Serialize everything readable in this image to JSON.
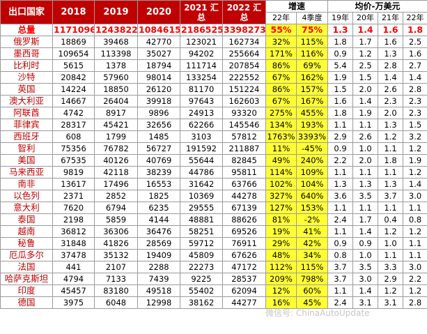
{
  "header": {
    "country": "出口国家",
    "y2018": "2018",
    "y2019": "2019",
    "y2020": "2020",
    "y2021_line1": "2021 汇",
    "y2021_line2": "总",
    "y2022_line1": "2022 汇",
    "y2022_line2": "总",
    "growth": "增速",
    "growth_22": "22年",
    "growth_q4": "4季度",
    "price": "均价-万美元",
    "price_19": "19年",
    "price_20": "20年",
    "price_21": "21年",
    "price_22": "22年"
  },
  "total": {
    "name": "总量",
    "y2018": "1171096",
    "y2019": "1243822",
    "y2020": "1084615",
    "y2021": "2186525",
    "y2022": "3398273",
    "g22": "55%",
    "gq4": "75%",
    "p19": "1.3",
    "p20": "1.4",
    "p21": "1.6",
    "p22": "1.8"
  },
  "rows": [
    {
      "name": "俄罗斯",
      "y2018": "18869",
      "y2019": "39468",
      "y2020": "42770",
      "y2021": "123021",
      "y2022": "162734",
      "g22": "32%",
      "gq4": "115%",
      "p19": "1.8",
      "p20": "1.7",
      "p21": "1.6",
      "p22": "2.5"
    },
    {
      "name": "墨西哥",
      "y2018": "109654",
      "y2019": "113398",
      "y2020": "35027",
      "y2021": "94202",
      "y2022": "255664",
      "g22": "171%",
      "gq4": "116%",
      "p19": "0.9",
      "p20": "1.2",
      "p21": "1.3",
      "p22": "1.6"
    },
    {
      "name": "比利时",
      "y2018": "5615",
      "y2019": "1378",
      "y2020": "18794",
      "y2021": "111714",
      "y2022": "207854",
      "g22": "86%",
      "gq4": "69%",
      "p19": "5.4",
      "p20": "2.5",
      "p21": "2.8",
      "p22": "2.7"
    },
    {
      "name": "沙特",
      "y2018": "20842",
      "y2019": "57960",
      "y2020": "98014",
      "y2021": "133254",
      "y2022": "222552",
      "g22": "67%",
      "gq4": "162%",
      "p19": "1.9",
      "p20": "1.5",
      "p21": "1.4",
      "p22": "1.4"
    },
    {
      "name": "英国",
      "y2018": "14224",
      "y2019": "18850",
      "y2020": "26120",
      "y2021": "81170",
      "y2022": "151224",
      "g22": "86%",
      "gq4": "157%",
      "p19": "1.5",
      "p20": "2.0",
      "p21": "2.6",
      "p22": "2.8"
    },
    {
      "name": "澳大利亚",
      "y2018": "14667",
      "y2019": "26404",
      "y2020": "39918",
      "y2021": "97643",
      "y2022": "162603",
      "g22": "67%",
      "gq4": "167%",
      "p19": "1.6",
      "p20": "1.4",
      "p21": "2.3",
      "p22": "2.3"
    },
    {
      "name": "阿联酋",
      "y2018": "4742",
      "y2019": "8917",
      "y2020": "9896",
      "y2021": "24913",
      "y2022": "93320",
      "g22": "275%",
      "gq4": "455%",
      "p19": "1.8",
      "p20": "1.9",
      "p21": "2.0",
      "p22": "2.3"
    },
    {
      "name": "菲律宾",
      "y2018": "28317",
      "y2019": "45421",
      "y2020": "32656",
      "y2021": "62266",
      "y2022": "145546",
      "g22": "134%",
      "gq4": "193%",
      "p19": "1.1",
      "p20": "1.1",
      "p21": "1.3",
      "p22": "1.5"
    },
    {
      "name": "西班牙",
      "y2018": "608",
      "y2019": "1799",
      "y2020": "1485",
      "y2021": "3103",
      "y2022": "57812",
      "g22": "1763%",
      "gq4": "3393%",
      "p19": "2.9",
      "p20": "2.6",
      "p21": "1.2",
      "p22": "3.2"
    },
    {
      "name": "智利",
      "y2018": "75356",
      "y2019": "76782",
      "y2020": "56727",
      "y2021": "191592",
      "y2022": "211887",
      "g22": "11%",
      "gq4": "-45%",
      "p19": "0.9",
      "p20": "1.0",
      "p21": "1.1",
      "p22": "1.2"
    },
    {
      "name": "美国",
      "y2018": "67535",
      "y2019": "40126",
      "y2020": "40769",
      "y2021": "55644",
      "y2022": "82845",
      "g22": "49%",
      "gq4": "240%",
      "p19": "2.2",
      "p20": "2.0",
      "p21": "1.8",
      "p22": "1.9"
    },
    {
      "name": "马来西亚",
      "y2018": "9819",
      "y2019": "42118",
      "y2020": "38239",
      "y2021": "44786",
      "y2022": "95811",
      "g22": "114%",
      "gq4": "109%",
      "p19": "1.1",
      "p20": "1.1",
      "p21": "1.1",
      "p22": "1.2"
    },
    {
      "name": "南非",
      "y2018": "13617",
      "y2019": "17496",
      "y2020": "16553",
      "y2021": "31642",
      "y2022": "63766",
      "g22": "102%",
      "gq4": "104%",
      "p19": "1.3",
      "p20": "1.3",
      "p21": "1.3",
      "p22": "1.4"
    },
    {
      "name": "以色列",
      "y2018": "2371",
      "y2019": "2852",
      "y2020": "1825",
      "y2021": "10369",
      "y2022": "44278",
      "g22": "327%",
      "gq4": "640%",
      "p19": "3.6",
      "p20": "3.5",
      "p21": "3.7",
      "p22": "3.0"
    },
    {
      "name": "意大利",
      "y2018": "7620",
      "y2019": "6794",
      "y2020": "6235",
      "y2021": "29555",
      "y2022": "67139",
      "g22": "127%",
      "gq4": "153%",
      "p19": "1.1",
      "p20": "1.1",
      "p21": "1.1",
      "p22": "1.1"
    },
    {
      "name": "泰国",
      "y2018": "2198",
      "y2019": "5859",
      "y2020": "4144",
      "y2021": "48881",
      "y2022": "88626",
      "g22": "81%",
      "gq4": "-2%",
      "p19": "2.4",
      "p20": "1.7",
      "p21": "0.4",
      "p22": "0.8"
    },
    {
      "name": "越南",
      "y2018": "36812",
      "y2019": "36306",
      "y2020": "36476",
      "y2021": "58251",
      "y2022": "69526",
      "g22": "19%",
      "gq4": "41%",
      "p19": "1.1",
      "p20": "1.4",
      "p21": "1.2",
      "p22": "1.2"
    },
    {
      "name": "秘鲁",
      "y2018": "31848",
      "y2019": "41826",
      "y2020": "28569",
      "y2021": "59712",
      "y2022": "76911",
      "g22": "29%",
      "gq4": "42%",
      "p19": "0.9",
      "p20": "0.9",
      "p21": "1.0",
      "p22": "1.1"
    },
    {
      "name": "厄瓜多尔",
      "y2018": "37478",
      "y2019": "35132",
      "y2020": "19409",
      "y2021": "45809",
      "y2022": "67626",
      "g22": "48%",
      "gq4": "34%",
      "p19": "0.8",
      "p20": "1.0",
      "p21": "1.1",
      "p22": "1.1"
    },
    {
      "name": "法国",
      "y2018": "441",
      "y2019": "2107",
      "y2020": "2288",
      "y2021": "22273",
      "y2022": "47172",
      "g22": "112%",
      "gq4": "115%",
      "p19": "3.7",
      "p20": "3.5",
      "p21": "3.3",
      "p22": "3.0"
    },
    {
      "name": "哈萨克斯坦",
      "y2018": "4794",
      "y2019": "7133",
      "y2020": "7439",
      "y2021": "9225",
      "y2022": "28537",
      "g22": "209%",
      "gq4": "798%",
      "p19": "3.7",
      "p20": "3.0",
      "p21": "2.9",
      "p22": "2.2"
    },
    {
      "name": "印度",
      "y2018": "45457",
      "y2019": "83180",
      "y2020": "49518",
      "y2021": "55402",
      "y2022": "62094",
      "g22": "12%",
      "gq4": "60%",
      "p19": "1.1",
      "p20": "1.4",
      "p21": "1.2",
      "p22": "1.2"
    },
    {
      "name": "德国",
      "y2018": "3975",
      "y2019": "6048",
      "y2020": "12998",
      "y2021": "38162",
      "y2022": "44277",
      "g22": "16%",
      "gq4": "45%",
      "p19": "2.4",
      "p20": "3.1",
      "p21": "3.1",
      "p22": "2.8"
    }
  ],
  "watermark": "微信号: ChinaAutoUpdate"
}
